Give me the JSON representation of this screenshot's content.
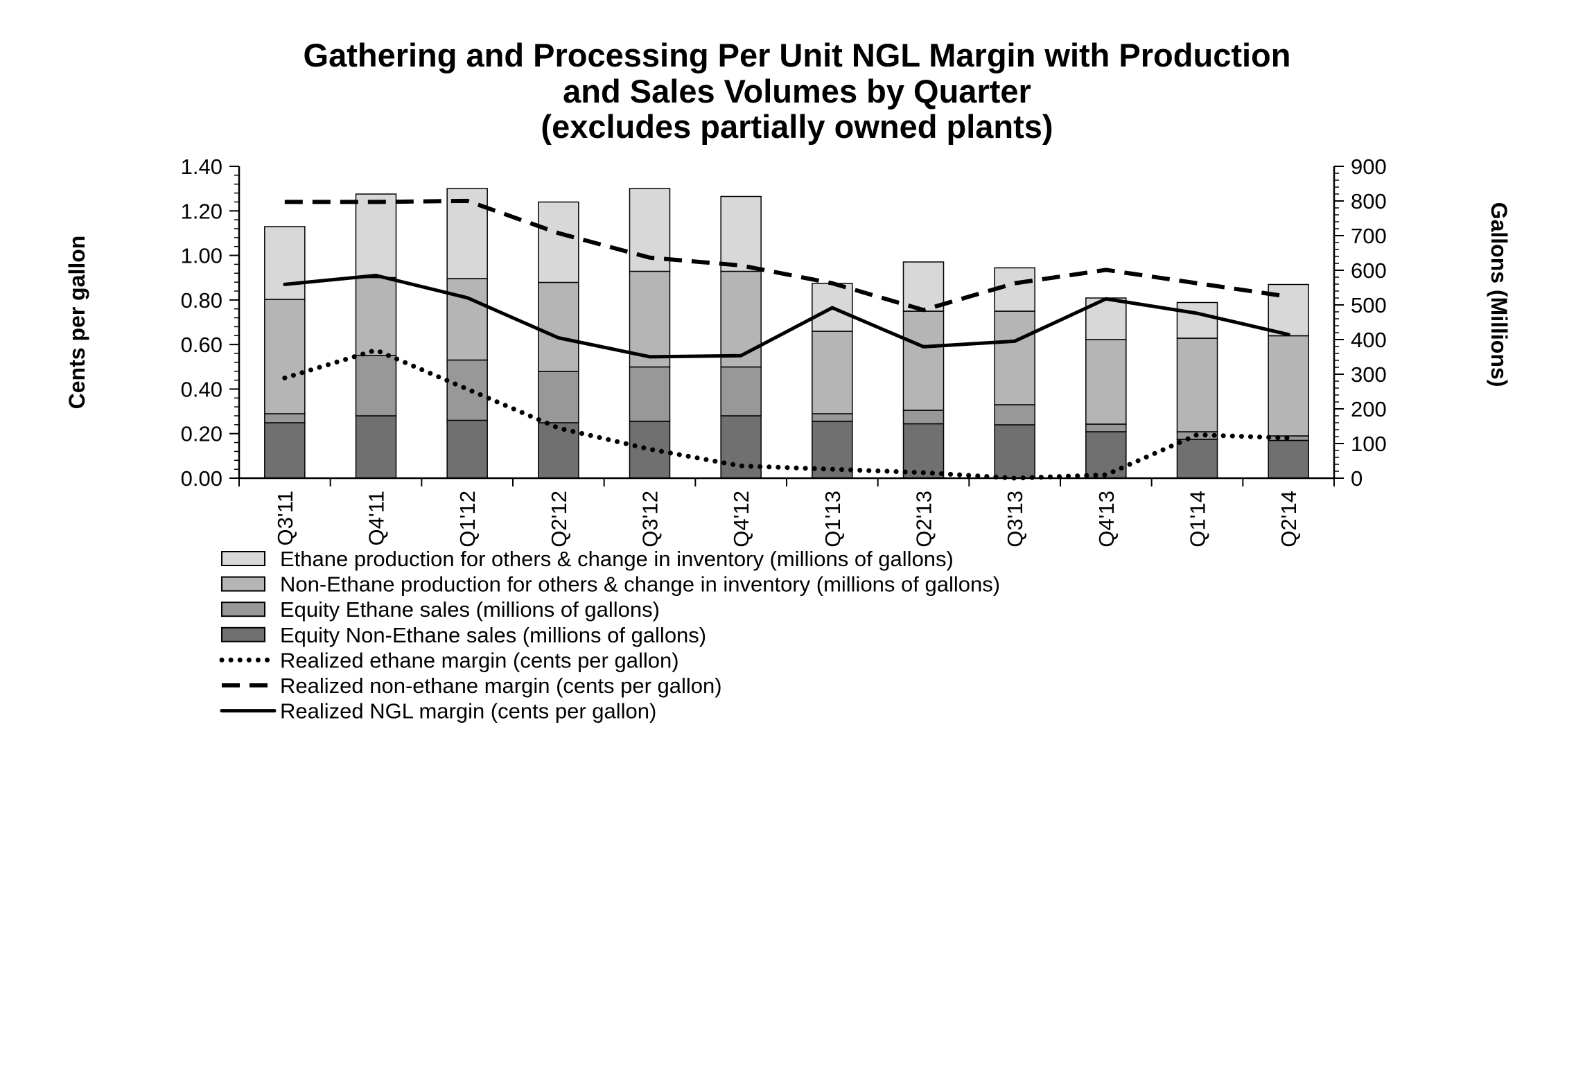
{
  "title": {
    "line1": "Gathering and Processing Per Unit NGL Margin with Production",
    "line2": "and Sales Volumes by Quarter",
    "line3": "(excludes partially owned plants)"
  },
  "colors": {
    "background": "#ffffff",
    "text": "#000000",
    "line": "#000000"
  },
  "chart_data": {
    "type": "combo-stacked-bar-line",
    "categories": [
      "Q3'11",
      "Q4'11",
      "Q1'12",
      "Q2'12",
      "Q3'12",
      "Q4'12",
      "Q1'13",
      "Q2'13",
      "Q3'13",
      "Q4'13",
      "Q1'14",
      "Q2'14"
    ],
    "left_axis": {
      "label": "Cents per gallon",
      "min": 0,
      "max": 1.4,
      "major_step": 0.2,
      "minor_step": 0.04,
      "tick_labels": [
        "0.00",
        "0.20",
        "0.40",
        "0.60",
        "0.80",
        "1.00",
        "1.20",
        "1.40"
      ]
    },
    "right_axis": {
      "label": "Gallons (Millions)",
      "min": 0,
      "max": 900,
      "major_step": 100,
      "minor_step": 20,
      "tick_labels": [
        "0",
        "100",
        "200",
        "300",
        "400",
        "500",
        "600",
        "700",
        "800",
        "900"
      ]
    },
    "bar_series": [
      {
        "name": "Equity Non-Ethane sales (millions of gallons)",
        "color": "#707070",
        "axis": "right",
        "values": [
          160,
          180,
          167,
          160,
          164,
          180,
          164,
          157,
          154,
          134,
          112,
          109
        ]
      },
      {
        "name": "Equity Ethane sales (millions of gallons)",
        "color": "#989898",
        "axis": "right",
        "values": [
          26,
          174,
          174,
          148,
          157,
          141,
          22,
          39,
          58,
          22,
          22,
          13
        ]
      },
      {
        "name": "Non-Ethane production for others & change in inventory (millions of gallons)",
        "color": "#b5b5b5",
        "axis": "right",
        "values": [
          330,
          225,
          235,
          257,
          276,
          276,
          238,
          286,
          270,
          244,
          270,
          289
        ]
      },
      {
        "name": "Ethane production for others & change in inventory (millions of gallons)",
        "color": "#d8d8d8",
        "axis": "right",
        "values": [
          210,
          241,
          260,
          232,
          239,
          216,
          138,
          142,
          125,
          120,
          103,
          148
        ]
      }
    ],
    "line_series": [
      {
        "name": "Realized ethane margin (cents per gallon)",
        "style": "dotted",
        "color": "#000000",
        "axis": "left",
        "values": [
          0.45,
          0.575,
          0.4,
          0.225,
          0.13,
          0.055,
          0.04,
          0.025,
          0.0,
          0.015,
          0.195,
          0.18
        ]
      },
      {
        "name": "Realized non-ethane margin (cents per gallon)",
        "style": "dashed",
        "color": "#000000",
        "axis": "left",
        "values": [
          1.24,
          1.24,
          1.245,
          1.1,
          0.99,
          0.955,
          0.875,
          0.755,
          0.875,
          0.935,
          0.875,
          0.815
        ]
      },
      {
        "name": "Realized NGL margin (cents per gallon)",
        "style": "solid",
        "color": "#000000",
        "axis": "left",
        "values": [
          0.87,
          0.91,
          0.81,
          0.63,
          0.545,
          0.55,
          0.765,
          0.59,
          0.615,
          0.805,
          0.74,
          0.645
        ]
      }
    ],
    "legend_order": [
      "Ethane production for others & change in inventory (millions of gallons)",
      "Non-Ethane production for others & change in inventory (millions of gallons)",
      "Equity Ethane sales (millions of gallons)",
      "Equity Non-Ethane sales (millions of gallons)",
      "Realized ethane margin (cents per gallon)",
      "Realized non-ethane margin (cents per gallon)",
      "Realized NGL margin (cents per gallon)"
    ],
    "grid": "off",
    "legend_position": "bottom-left"
  }
}
